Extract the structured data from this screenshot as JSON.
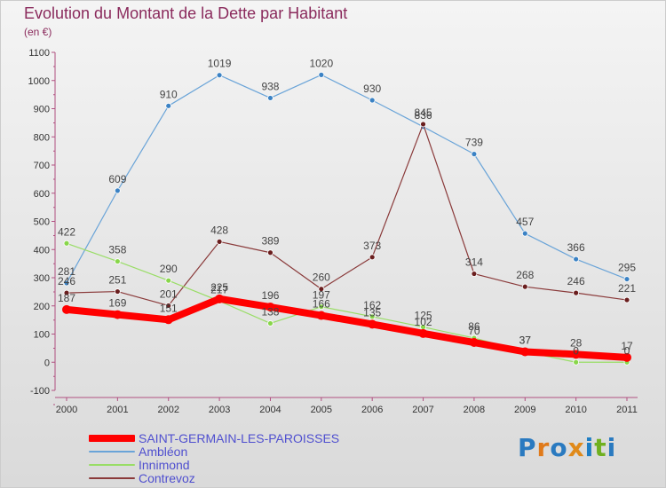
{
  "title": "Evolution du Montant de la Dette par Habitant",
  "subtitle": "(en €)",
  "logo": {
    "text": "Proxiti",
    "colors": [
      "#2a7ac0",
      "#e07a1a",
      "#2a7ac0",
      "#e08a1a",
      "#1f7ec4",
      "#70b020",
      "#2a7ac0"
    ]
  },
  "chart_data": {
    "type": "line",
    "title": "Evolution du Montant de la Dette par Habitant",
    "ylabel": "(en €)",
    "xlabel": "",
    "categories": [
      "2000",
      "2001",
      "2002",
      "2003",
      "2004",
      "2005",
      "2006",
      "2007",
      "2008",
      "2009",
      "2010",
      "2011"
    ],
    "ylim": [
      -100,
      1100
    ],
    "yticks": [
      -100,
      0,
      100,
      200,
      300,
      400,
      500,
      600,
      700,
      800,
      900,
      1000,
      1100
    ],
    "grid": false,
    "legend": "bottom-left",
    "series": [
      {
        "name": "SAINT-GERMAIN-LES-PAROISSES",
        "color": "#ff0000",
        "width": 8,
        "point_color": "#ff0000",
        "values": [
          187,
          169,
          151,
          225,
          196,
          166,
          135,
          102,
          70,
          37,
          28,
          17
        ],
        "labels": [
          "187",
          "169",
          "151",
          "225",
          "196",
          "166",
          "135",
          "102",
          "70",
          "37",
          "28",
          "17"
        ]
      },
      {
        "name": "Ambléon",
        "color": "#6aa4d8",
        "width": 1.2,
        "point_color": "#3b82c4",
        "values": [
          281,
          609,
          910,
          1019,
          938,
          1020,
          930,
          836,
          739,
          457,
          366,
          295
        ],
        "labels": [
          "281",
          "609",
          "910",
          "1019",
          "938",
          "1020",
          "930",
          "836",
          "739",
          "457",
          "366",
          "295"
        ]
      },
      {
        "name": "Innimond",
        "color": "#99dd66",
        "width": 1.2,
        "point_color": "#88d64a",
        "values": [
          422,
          358,
          290,
          217,
          138,
          197,
          162,
          125,
          86,
          37,
          0,
          0
        ],
        "labels": [
          "422",
          "358",
          "290",
          "217",
          "138",
          "197",
          "162",
          "125",
          "86",
          "37",
          "0",
          "0"
        ]
      },
      {
        "name": "Contrevoz",
        "color": "#8a3a3a",
        "width": 1.2,
        "point_color": "#6a1e1e",
        "values": [
          246,
          251,
          201,
          428,
          389,
          260,
          373,
          845,
          314,
          268,
          246,
          221
        ],
        "labels": [
          "246",
          "251",
          "201",
          "428",
          "389",
          "260",
          "373",
          "845",
          "314",
          "268",
          "246",
          "221"
        ]
      }
    ]
  }
}
